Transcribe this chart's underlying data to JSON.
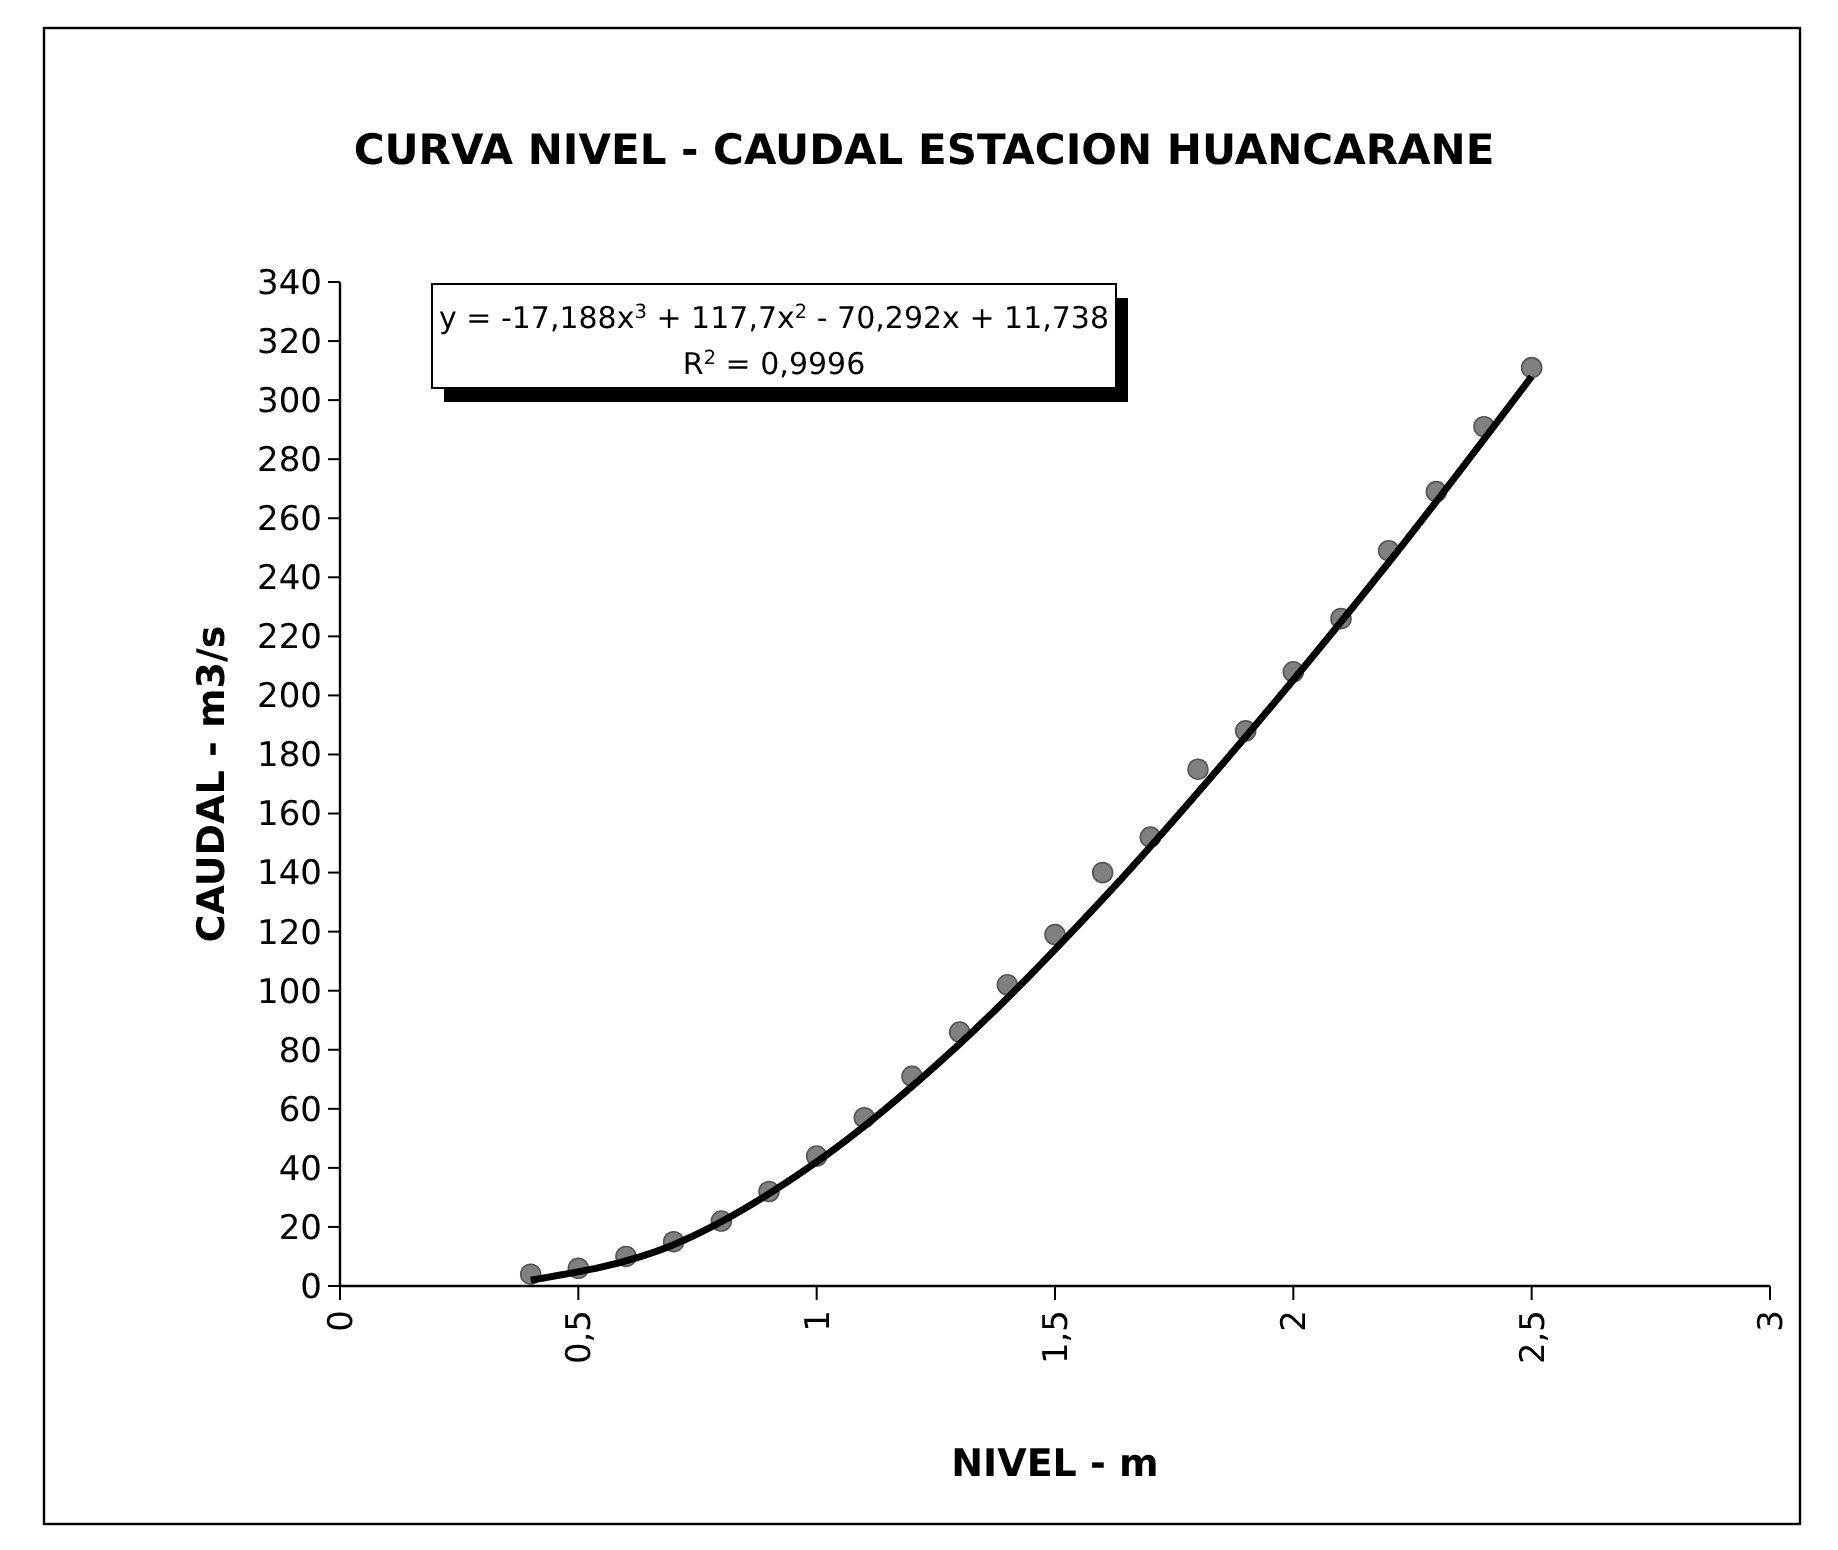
{
  "chart_data": {
    "type": "scatter",
    "title": "CURVA NIVEL - CAUDAL ESTACION HUANCARANE",
    "xlabel": "NIVEL - m",
    "ylabel": "CAUDAL - m3/s",
    "annotations": [
      "y = -17,188x$^{3}$ + 117,7x$^{2}$ - 70,292x + 11,738",
      "R$^{2}$ = 0,9996"
    ],
    "xlim": [
      0,
      3
    ],
    "xticks": [
      0,
      {
        "value": 0.5,
        "label": "0,5"
      },
      1,
      {
        "value": 1.5,
        "label": "1,5"
      },
      2,
      {
        "value": 2.5,
        "label": "2,5"
      },
      3
    ],
    "ylim": [
      0,
      340
    ],
    "yticks": [
      0,
      20,
      40,
      60,
      80,
      100,
      120,
      140,
      160,
      180,
      200,
      220,
      240,
      260,
      280,
      300,
      320,
      340
    ],
    "grid": false,
    "series": [
      {
        "color": "#808080",
        "marker": "circle",
        "x": [
          0.4,
          0.5,
          0.6,
          0.7,
          0.8,
          0.9,
          1.0,
          1.1,
          1.2,
          1.3,
          1.4,
          1.5,
          1.6,
          1.7,
          1.8,
          1.9,
          2.0,
          2.1,
          2.2,
          2.3,
          2.4,
          2.5
        ],
        "values": [
          4,
          6,
          10,
          15,
          22,
          32,
          44,
          57,
          71,
          86,
          102,
          119,
          140,
          152,
          175,
          188,
          208,
          226,
          249,
          269,
          291,
          311
        ]
      },
      {
        "type": "line",
        "color": "#000000",
        "marker": "none",
        "line_style": "solid",
        "x": [
          0.4,
          0.7,
          1.0,
          1.3,
          1.6,
          1.9,
          2.2,
          2.5
        ],
        "values": [
          2,
          14,
          42,
          82,
          131,
          186,
          245,
          308
        ]
      }
    ]
  }
}
